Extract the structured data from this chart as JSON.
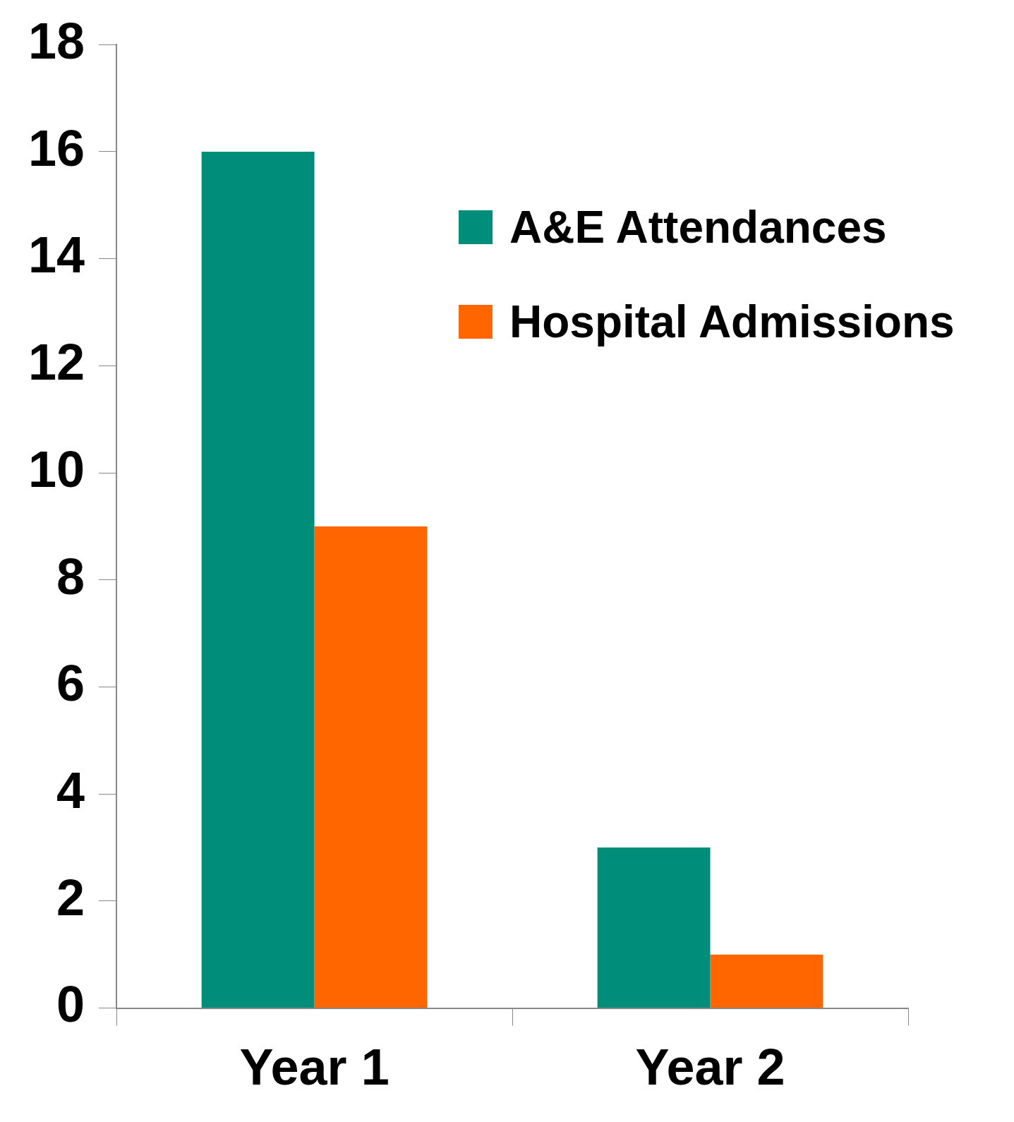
{
  "chart_data": {
    "type": "bar",
    "categories": [
      "Year 1",
      "Year 2"
    ],
    "series": [
      {
        "name": "A&E Attendances",
        "color": "#008e7a",
        "values": [
          16,
          3
        ]
      },
      {
        "name": "Hospital Admissions",
        "color": "#ff6600",
        "values": [
          9,
          1
        ]
      }
    ],
    "ylim": [
      0,
      18
    ],
    "yticks": [
      0,
      2,
      4,
      6,
      8,
      10,
      12,
      14,
      16,
      18
    ],
    "grid": false,
    "legend": "top right"
  }
}
